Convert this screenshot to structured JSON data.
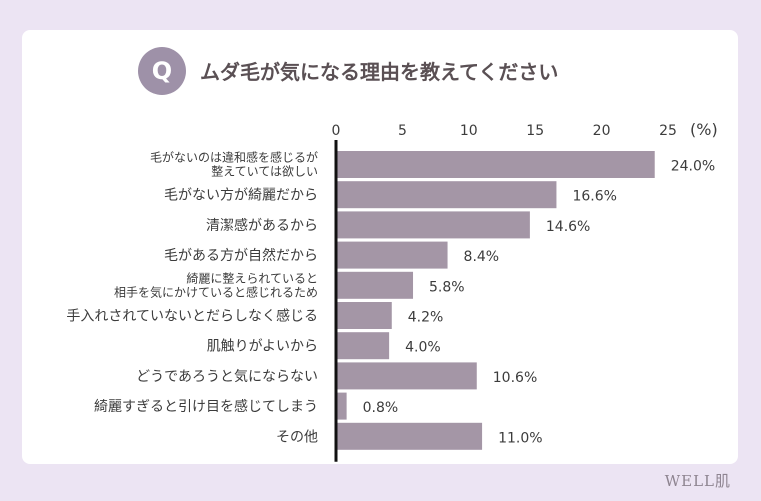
{
  "title": {
    "badge": "Q",
    "question": "ムダ毛が気になる理由を教えてください"
  },
  "brand": "WELL肌",
  "chart_data": {
    "type": "bar",
    "orientation": "horizontal",
    "unit_label": "(%)",
    "xlim": [
      0,
      25
    ],
    "ticks": [
      "0",
      "5",
      "10",
      "15",
      "20",
      "25"
    ],
    "bar_color": "#a496a6",
    "categories": [
      [
        "毛がないのは違和感を感じるが",
        "整えていては欲しい"
      ],
      [
        "毛がない方が綺麗だから"
      ],
      [
        "清潔感があるから"
      ],
      [
        "毛がある方が自然だから"
      ],
      [
        "綺麗に整えられていると",
        "相手を気にかけていると感じれるため"
      ],
      [
        "手入れされていないとだらしなく感じる"
      ],
      [
        "肌触りがよいから"
      ],
      [
        "どうであろうと気にならない"
      ],
      [
        "綺麗すぎると引け目を感じてしまう"
      ],
      [
        "その他"
      ]
    ],
    "values": [
      24.0,
      16.6,
      14.6,
      8.4,
      5.8,
      4.2,
      4.0,
      10.6,
      0.8,
      11.0
    ],
    "value_labels": [
      "24.0%",
      "16.6%",
      "14.6%",
      "8.4%",
      "5.8%",
      "4.2%",
      "4.0%",
      "10.6%",
      "0.8%",
      "11.0%"
    ]
  }
}
